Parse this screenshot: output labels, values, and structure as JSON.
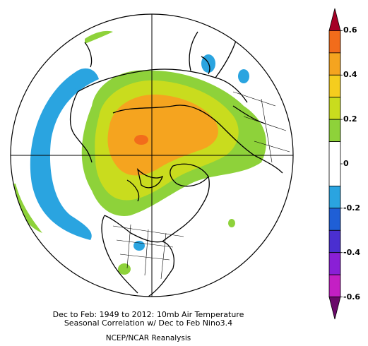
{
  "title_lines": [
    "Dec to Feb: 1949 to 2012: 10mb Air Temperature",
    "Seasonal Correlation w/ Dec to Feb Nino3.4"
  ],
  "source": "NCEP/NCAR Reanalysis",
  "colorbar": {
    "ticks": [
      "0.6",
      "0.4",
      "0.2",
      "0",
      "-0.2",
      "-0.4",
      "-0.6"
    ],
    "bins": [
      {
        "range": [
          0.6,
          0.7
        ],
        "color": "#a50026"
      },
      {
        "range": [
          0.5,
          0.6
        ],
        "color": "#f26c1b"
      },
      {
        "range": [
          0.4,
          0.5
        ],
        "color": "#f5a41f"
      },
      {
        "range": [
          0.3,
          0.4
        ],
        "color": "#f5cd1e"
      },
      {
        "range": [
          0.2,
          0.3
        ],
        "color": "#c9dc1e"
      },
      {
        "range": [
          0.1,
          0.2
        ],
        "color": "#8ed23a"
      },
      {
        "range": [
          -0.1,
          0.1
        ],
        "color": "#ffffff"
      },
      {
        "range": [
          -0.2,
          -0.1
        ],
        "color": "#2aa4e0"
      },
      {
        "range": [
          -0.3,
          -0.2
        ],
        "color": "#1f5fd6"
      },
      {
        "range": [
          -0.4,
          -0.3
        ],
        "color": "#4a2fd0"
      },
      {
        "range": [
          -0.5,
          -0.4
        ],
        "color": "#8a1fd6"
      },
      {
        "range": [
          -0.6,
          -0.5
        ],
        "color": "#c41fc4"
      },
      {
        "range": [
          -0.7,
          -0.6
        ],
        "color": "#6a0a6a"
      }
    ]
  },
  "colors": {
    "land_line": "#000000",
    "grid_line": "#000000",
    "positive_weak": "#8ed23a",
    "positive_mod": "#c9dc1e",
    "positive_strong": "#f5a41f",
    "positive_peak": "#f26c1b",
    "negative_weak": "#2aa4e0"
  },
  "projection": "north polar stereographic"
}
